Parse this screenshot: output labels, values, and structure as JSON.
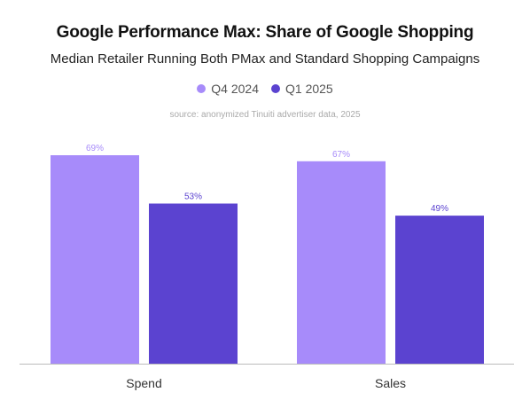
{
  "chart_data": {
    "type": "bar",
    "title": "Google Performance Max: Share of Google Shopping",
    "subtitle": "Median Retailer Running Both PMax and Standard Shopping Campaigns",
    "source": "source: anonymized Tinuiti advertiser data, 2025",
    "categories": [
      "Spend",
      "Sales"
    ],
    "series": [
      {
        "name": "Q4 2024",
        "values": [
          69,
          67
        ],
        "labels": [
          "69%",
          "67%"
        ],
        "color": "#a78bfa"
      },
      {
        "name": "Q1 2025",
        "values": [
          53,
          49
        ],
        "labels": [
          "53%",
          "49%"
        ],
        "color": "#5b43d0"
      }
    ],
    "ylim": [
      0,
      69
    ],
    "legend_position": "top-center",
    "grid": false
  }
}
